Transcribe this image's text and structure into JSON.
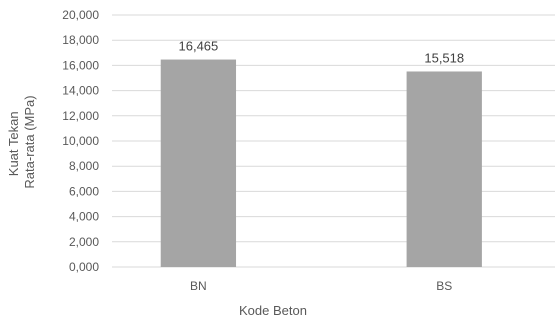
{
  "chart_data": {
    "type": "bar",
    "categories": [
      "BN",
      "BS"
    ],
    "values": [
      16.465,
      15.518
    ],
    "value_labels": [
      "16,465",
      "15,518"
    ],
    "xlabel": "Kode Beton",
    "ylabel_lines": [
      "Kuat Tekan",
      "Rata-rata (MPa)"
    ],
    "ylim": [
      0,
      20
    ],
    "y_ticks": [
      0,
      2,
      4,
      6,
      8,
      10,
      12,
      14,
      16,
      18,
      20
    ],
    "y_tick_labels": [
      "0,000",
      "2,000",
      "4,000",
      "6,000",
      "8,000",
      "10,000",
      "12,000",
      "14,000",
      "16,000",
      "18,000",
      "20,000"
    ],
    "grid": true,
    "legend": "none",
    "bar_color": "#a5a5a5",
    "grid_color": "#d9d9d9"
  }
}
